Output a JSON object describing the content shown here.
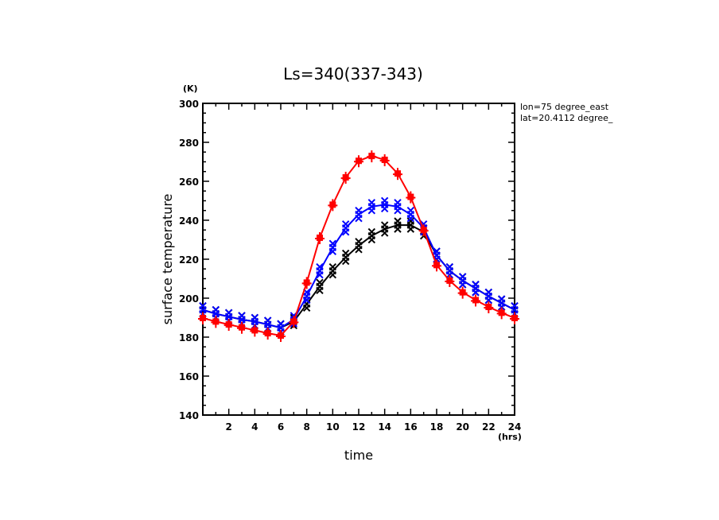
{
  "chart_data": {
    "type": "line",
    "title": "Ls=340(337-343)",
    "xlabel": "time",
    "ylabel": "surface temperature",
    "x_unit": "(hrs)",
    "y_unit": "(K)",
    "xlim": [
      0,
      24
    ],
    "ylim": [
      140,
      300
    ],
    "x_ticks": [
      2,
      4,
      6,
      8,
      10,
      12,
      14,
      16,
      18,
      20,
      22,
      24
    ],
    "x_minor_step": 1,
    "y_ticks": [
      140,
      160,
      180,
      200,
      220,
      240,
      260,
      280,
      300
    ],
    "y_minor_step": 5,
    "grid": false,
    "annotations": [
      "lon=75 degree_east",
      "lat=20.4112 degree_"
    ],
    "x": [
      0,
      1,
      2,
      3,
      4,
      5,
      6,
      7,
      8,
      9,
      10,
      11,
      12,
      13,
      14,
      15,
      16,
      17,
      18,
      19,
      20,
      21,
      22,
      23,
      24
    ],
    "series": [
      {
        "name": "red",
        "color": "#ff0000",
        "marker": "+",
        "values": [
          189.8,
          188.0,
          186.5,
          185.0,
          183.5,
          182.0,
          180.8,
          188.0,
          208.0,
          231.0,
          248.0,
          262.0,
          270.5,
          273.0,
          271.0,
          264.0,
          252.0,
          235.0,
          217.0,
          209.0,
          203.0,
          199.0,
          195.5,
          192.5,
          189.8
        ]
      },
      {
        "name": "blue",
        "color": "#0000ff",
        "marker": "x",
        "values": [
          194.0,
          192.0,
          190.5,
          189.0,
          188.0,
          186.5,
          184.8,
          189.0,
          201.0,
          214.0,
          226.0,
          236.0,
          243.0,
          247.0,
          248.0,
          247.0,
          243.0,
          236.0,
          222.0,
          214.0,
          209.0,
          205.0,
          201.0,
          197.5,
          194.0
        ]
      },
      {
        "name": "black",
        "color": "#000000",
        "marker": "x",
        "values": [
          194.0,
          192.0,
          190.5,
          189.0,
          188.0,
          186.5,
          184.8,
          188.0,
          197.0,
          206.0,
          214.0,
          221.0,
          227.0,
          232.0,
          235.5,
          237.5,
          237.5,
          234.0,
          222.0,
          214.0,
          209.0,
          205.0,
          201.0,
          197.5,
          194.0
        ]
      }
    ]
  }
}
